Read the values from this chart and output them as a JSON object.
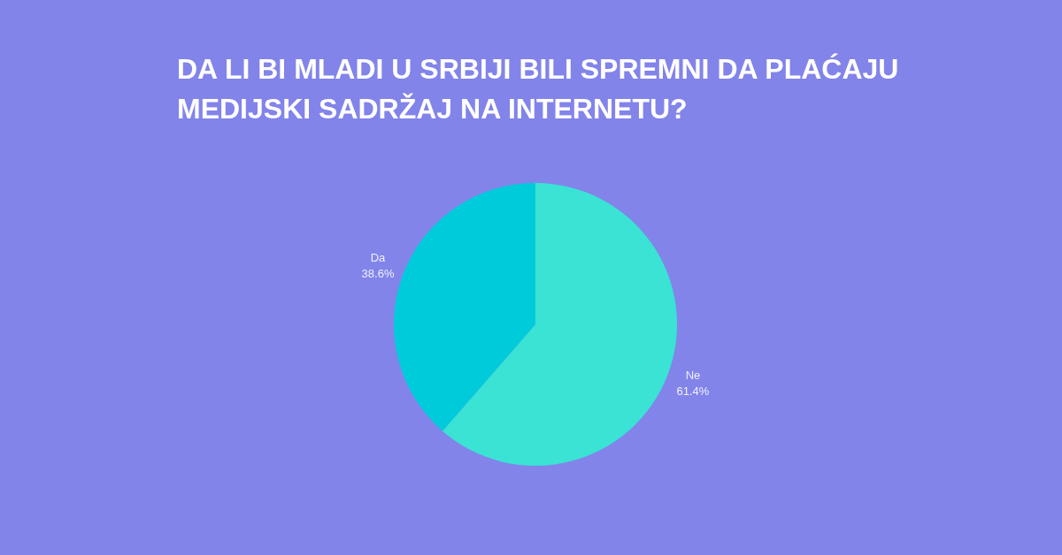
{
  "chart_data": {
    "type": "pie",
    "title": "DA LI BI MLADI U SRBIJI BILI SPREMNI DA PLAĆAJU MEDIJSKI SADRŽAJ NA INTERNETU?",
    "categories": [
      "Ne",
      "Da"
    ],
    "values": [
      61.4,
      38.6
    ],
    "colors": [
      "#3ae3d4",
      "#00cbdb"
    ],
    "value_labels": [
      "61.4%",
      "38.6%"
    ]
  }
}
